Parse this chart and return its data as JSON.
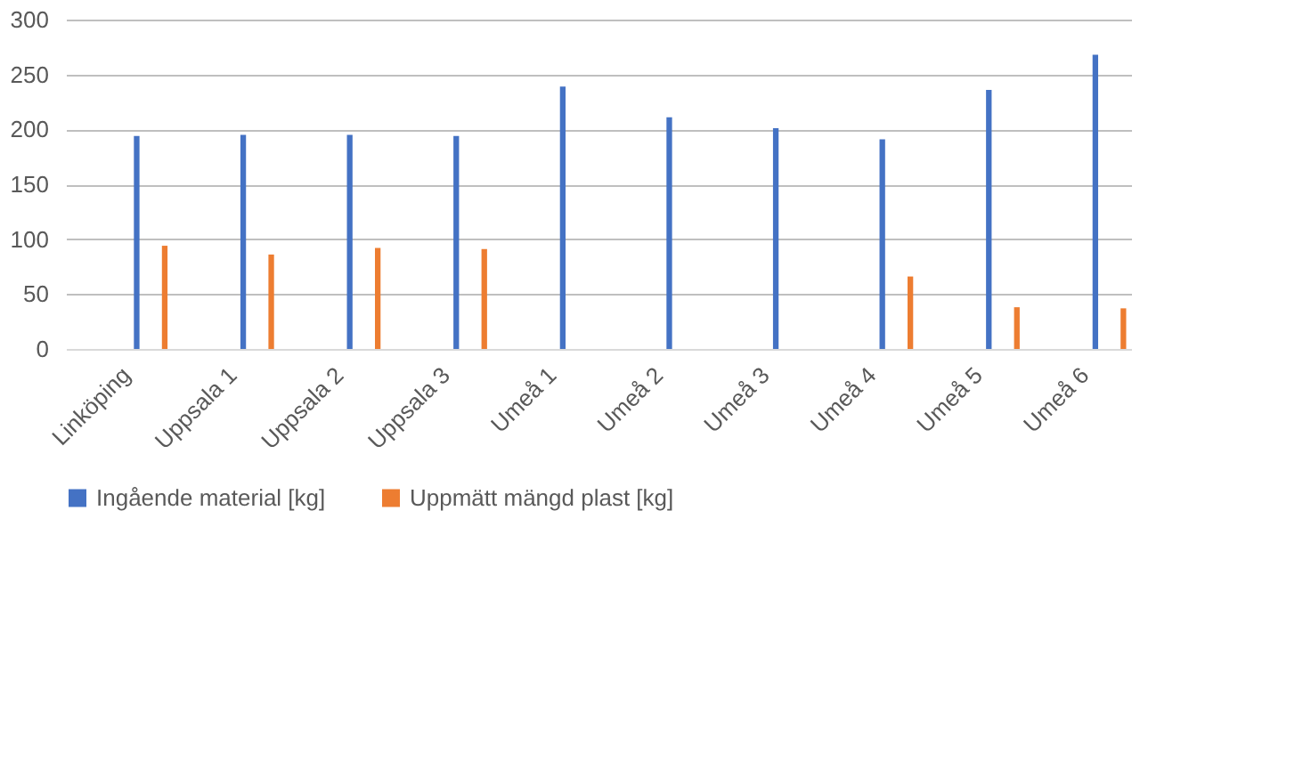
{
  "chart_data": {
    "type": "bar",
    "categories": [
      "Linköping",
      "Uppsala 1",
      "Uppsala 2",
      "Uppsala 3",
      "Umeå 1",
      "Umeå 2",
      "Umeå 3",
      "Umeå 4",
      "Umeå 5",
      "Umeå 6"
    ],
    "series": [
      {
        "name": "Ingående material [kg]",
        "color": "#4472c4",
        "values": [
          194,
          195,
          195,
          194,
          239,
          211,
          201,
          191,
          236,
          268
        ]
      },
      {
        "name": "Uppmätt mängd plast [kg]",
        "color": "#ed7d31",
        "values": [
          94,
          86,
          92,
          91,
          null,
          null,
          null,
          66,
          38,
          37
        ]
      }
    ],
    "ylim": [
      0,
      300
    ],
    "yticks": [
      0,
      50,
      100,
      150,
      200,
      250,
      300
    ],
    "grid": "y",
    "legend": "bottom"
  }
}
